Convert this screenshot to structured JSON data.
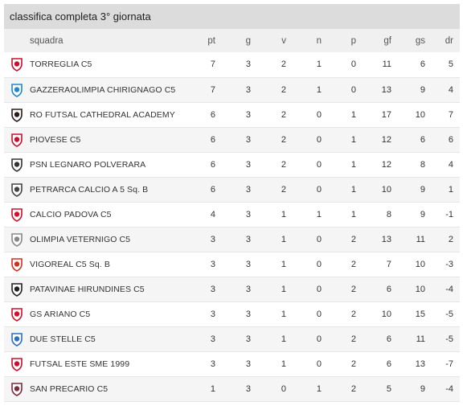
{
  "title": "classifica completa 3° giornata",
  "columns": {
    "squadra": "squadra",
    "pt": "pt",
    "g": "g",
    "v": "v",
    "n": "n",
    "p": "p",
    "gf": "gf",
    "gs": "gs",
    "dr": "dr"
  },
  "rows": [
    {
      "team": "TORREGLIA C5",
      "pt": "7",
      "g": "3",
      "v": "2",
      "n": "1",
      "p": "0",
      "gf": "11",
      "gs": "6",
      "dr": "5",
      "logo": "torreglia-logo-icon",
      "color": "#c8102e"
    },
    {
      "team": "GAZZERAOLIMPIA CHIRIGNAGO C5",
      "pt": "7",
      "g": "3",
      "v": "2",
      "n": "1",
      "p": "0",
      "gf": "13",
      "gs": "9",
      "dr": "4",
      "logo": "gazzera-logo-icon",
      "color": "#1e88c8"
    },
    {
      "team": "RO FUTSAL CATHEDRAL ACADEMY",
      "pt": "6",
      "g": "3",
      "v": "2",
      "n": "0",
      "p": "1",
      "gf": "17",
      "gs": "10",
      "dr": "7",
      "logo": "ro-futsal-logo-icon",
      "color": "#2a1a1a"
    },
    {
      "team": "PIOVESE C5",
      "pt": "6",
      "g": "3",
      "v": "2",
      "n": "0",
      "p": "1",
      "gf": "12",
      "gs": "6",
      "dr": "6",
      "logo": "piovese-logo-icon",
      "color": "#c8102e"
    },
    {
      "team": "PSN LEGNARO POLVERARA",
      "pt": "6",
      "g": "3",
      "v": "2",
      "n": "0",
      "p": "1",
      "gf": "12",
      "gs": "8",
      "dr": "4",
      "logo": "psn-legnaro-logo-icon",
      "color": "#333333"
    },
    {
      "team": "PETRARCA CALCIO A 5 Sq. B",
      "pt": "6",
      "g": "3",
      "v": "2",
      "n": "0",
      "p": "1",
      "gf": "10",
      "gs": "9",
      "dr": "1",
      "logo": "petrarca-logo-icon",
      "color": "#444444"
    },
    {
      "team": "CALCIO PADOVA C5",
      "pt": "4",
      "g": "3",
      "v": "1",
      "n": "1",
      "p": "1",
      "gf": "8",
      "gs": "9",
      "dr": "-1",
      "logo": "calcio-padova-logo-icon",
      "color": "#d0112b"
    },
    {
      "team": "OLIMPIA VETERNIGO C5",
      "pt": "3",
      "g": "3",
      "v": "1",
      "n": "0",
      "p": "2",
      "gf": "13",
      "gs": "11",
      "dr": "2",
      "logo": "olimpia-veternigo-logo-icon",
      "color": "#888888"
    },
    {
      "team": "VIGOREAL C5 Sq. B",
      "pt": "3",
      "g": "3",
      "v": "1",
      "n": "0",
      "p": "2",
      "gf": "7",
      "gs": "10",
      "dr": "-3",
      "logo": "vigoreal-logo-icon",
      "color": "#d4301f"
    },
    {
      "team": "PATAVINAE HIRUNDINES C5",
      "pt": "3",
      "g": "3",
      "v": "1",
      "n": "0",
      "p": "2",
      "gf": "6",
      "gs": "10",
      "dr": "-4",
      "logo": "patavinae-logo-icon",
      "color": "#222222"
    },
    {
      "team": "GS ARIANO C5",
      "pt": "3",
      "g": "3",
      "v": "1",
      "n": "0",
      "p": "2",
      "gf": "10",
      "gs": "15",
      "dr": "-5",
      "logo": "gs-ariano-logo-icon",
      "color": "#d0112b"
    },
    {
      "team": "DUE STELLE C5",
      "pt": "3",
      "g": "3",
      "v": "1",
      "n": "0",
      "p": "2",
      "gf": "6",
      "gs": "11",
      "dr": "-5",
      "logo": "due-stelle-logo-icon",
      "color": "#2a6fc0"
    },
    {
      "team": "FUTSAL ESTE SME 1999",
      "pt": "3",
      "g": "3",
      "v": "1",
      "n": "0",
      "p": "2",
      "gf": "6",
      "gs": "13",
      "dr": "-7",
      "logo": "futsal-este-logo-icon",
      "color": "#c8102e"
    },
    {
      "team": "SAN PRECARIO C5",
      "pt": "1",
      "g": "3",
      "v": "0",
      "n": "1",
      "p": "2",
      "gf": "5",
      "gs": "9",
      "dr": "-4",
      "logo": "san-precario-logo-icon",
      "color": "#7a2a3a"
    }
  ]
}
